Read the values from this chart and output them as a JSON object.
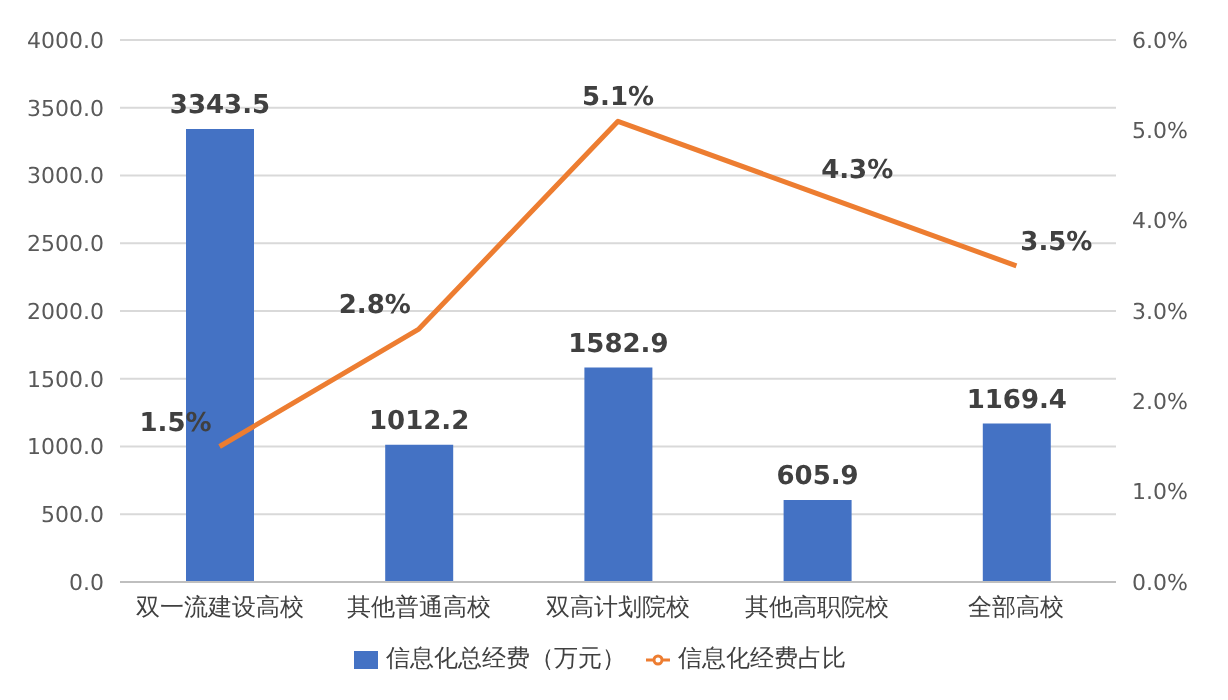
{
  "chart_data": {
    "type": "bar",
    "categories": [
      "双一流建设高校",
      "其他普通高校",
      "双高计划院校",
      "其他高职院校",
      "全部高校"
    ],
    "series": [
      {
        "name": "信息化总经费（万元）",
        "color": "#4472c4",
        "values": [
          3343.5,
          1012.2,
          1582.9,
          605.9,
          1169.4
        ],
        "value_labels": [
          "3343.5",
          "1012.2",
          "1582.9",
          "605.9",
          "1169.4"
        ]
      },
      {
        "name": "信息化经费占比",
        "type": "line",
        "axis": "y2",
        "color": "#ed7d31",
        "values": [
          1.5,
          2.8,
          5.1,
          4.3,
          3.5
        ],
        "value_labels": [
          "1.5%",
          "2.8%",
          "5.1%",
          "4.3%",
          "3.5%"
        ]
      }
    ],
    "ylim": [
      0,
      4000
    ],
    "yticks": [
      {
        "value": 0,
        "label": "0.0"
      },
      {
        "value": 500,
        "label": "500.0"
      },
      {
        "value": 1000,
        "label": "1000.0"
      },
      {
        "value": 1500,
        "label": "1500.0"
      },
      {
        "value": 2000,
        "label": "2000.0"
      },
      {
        "value": 2500,
        "label": "2500.0"
      },
      {
        "value": 3000,
        "label": "3000.0"
      },
      {
        "value": 3500,
        "label": "3500.0"
      },
      {
        "value": 4000,
        "label": "4000.0"
      }
    ],
    "y2lim": [
      0,
      6
    ],
    "y2ticks": [
      {
        "value": 0,
        "label": "0.0%"
      },
      {
        "value": 1,
        "label": "1.0%"
      },
      {
        "value": 2,
        "label": "2.0%"
      },
      {
        "value": 3,
        "label": "3.0%"
      },
      {
        "value": 4,
        "label": "4.0%"
      },
      {
        "value": 5,
        "label": "5.0%"
      },
      {
        "value": 6,
        "label": "6.0%"
      }
    ],
    "grid": "y",
    "legend": "bottom",
    "marker": "none",
    "line_style": "solid"
  }
}
